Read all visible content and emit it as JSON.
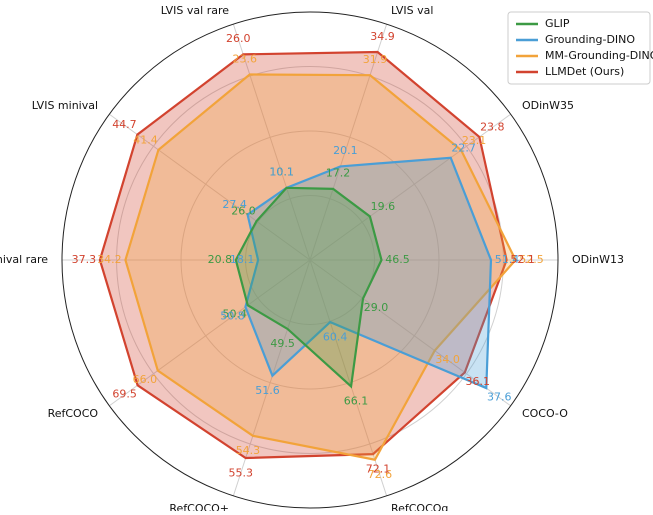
{
  "chart_data": {
    "type": "radar",
    "categories": [
      "LVIS val",
      "ODinW35",
      "ODinW13",
      "COCO-O",
      "RefCOCOg",
      "RefCOCO+",
      "RefCOCO",
      "LVIS minival rare",
      "LVIS minival",
      "LVIS val rare"
    ],
    "rlims": [
      [
        8.0,
        38.5
      ],
      [
        17.3,
        25.0
      ],
      [
        43.3,
        54.4
      ],
      [
        25.3,
        39.3
      ],
      [
        54.9,
        75.8
      ],
      [
        46.4,
        57.0
      ],
      [
        39.6,
        74.4
      ],
      [
        11.8,
        41.9
      ],
      [
        17.6,
        49.1
      ],
      [
        1.5,
        29.6
      ]
    ],
    "series": [
      {
        "name": "GLIP",
        "color": "#3c9a44",
        "values": [
          17.2,
          19.6,
          46.5,
          29.0,
          66.1,
          49.5,
          50.4,
          20.8,
          26.0,
          10.1
        ],
        "value_labels": [
          "17.2",
          "19.6",
          "46.5",
          "29.0",
          "66.1",
          "49.5",
          "50.4",
          "20.8",
          "26.0",
          "10.1"
        ]
      },
      {
        "name": "Grounding-DINO",
        "color": "#4a9ed6",
        "values": [
          20.1,
          22.7,
          51.4,
          37.6,
          60.4,
          51.6,
          50.8,
          18.1,
          27.4,
          10.1
        ],
        "value_labels": [
          "20.1",
          "22.7",
          "51.4",
          "37.6",
          "60.4",
          "51.6",
          "50.8",
          "18.1",
          "27.4",
          "10.1"
        ]
      },
      {
        "name": "MM-Grounding-DINO",
        "color": "#f2a33a",
        "values": [
          31.9,
          23.1,
          52.5,
          34.0,
          72.6,
          54.3,
          66.0,
          34.2,
          41.4,
          23.6
        ],
        "value_labels": [
          "31.9",
          "23.1",
          "52.5",
          "34.0",
          "72.6",
          "54.3",
          "66.0",
          "34.2",
          "41.4",
          "23.6"
        ]
      },
      {
        "name": "LLMDet (Ours)",
        "color": "#d2432f",
        "values": [
          34.9,
          23.8,
          52.1,
          36.1,
          72.1,
          55.3,
          69.5,
          37.3,
          44.7,
          26.0
        ],
        "value_labels": [
          "34.9",
          "23.8",
          "52.1",
          "36.1",
          "72.1",
          "55.3",
          "69.5",
          "37.3",
          "44.7",
          "26.0"
        ]
      }
    ],
    "legend": "upper right",
    "grid": true
  }
}
